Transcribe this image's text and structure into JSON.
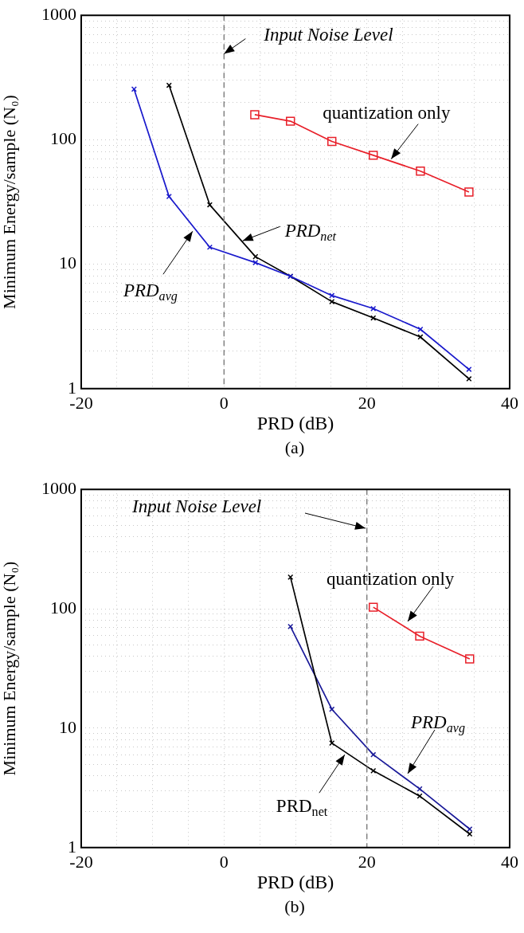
{
  "chart_data": [
    {
      "type": "line",
      "xlabel": "PRD (dB)",
      "ylabel": "Minimum Energy/sample (N₀)",
      "log": true,
      "grid": true,
      "legend": false,
      "xlim": [
        -20,
        40
      ],
      "xticks": [
        -20,
        {
          "value": -15,
          "label": null
        },
        {
          "value": -10,
          "label": null
        },
        {
          "value": -5,
          "label": null
        },
        0,
        {
          "value": 5,
          "label": null
        },
        {
          "value": 10,
          "label": null
        },
        {
          "value": 15,
          "label": null
        },
        20,
        {
          "value": 25,
          "label": null
        },
        {
          "value": 30,
          "label": null
        },
        {
          "value": 35,
          "label": null
        },
        40
      ],
      "ylim": [
        1,
        1000
      ],
      "yticks": [
        1,
        {
          "value": 2,
          "label": null
        },
        {
          "value": 3,
          "label": null
        },
        {
          "value": 4,
          "label": null
        },
        {
          "value": 5,
          "label": null
        },
        {
          "value": 6,
          "label": null
        },
        {
          "value": 7,
          "label": null
        },
        {
          "value": 8,
          "label": null
        },
        {
          "value": 9,
          "label": null
        },
        10,
        {
          "value": 20,
          "label": null
        },
        {
          "value": 30,
          "label": null
        },
        {
          "value": 40,
          "label": null
        },
        {
          "value": 50,
          "label": null
        },
        {
          "value": 60,
          "label": null
        },
        {
          "value": 70,
          "label": null
        },
        {
          "value": 80,
          "label": null
        },
        {
          "value": 90,
          "label": null
        },
        100,
        {
          "value": 200,
          "label": null
        },
        {
          "value": 300,
          "label": null
        },
        {
          "value": 400,
          "label": null
        },
        {
          "value": 500,
          "label": null
        },
        {
          "value": 600,
          "label": null
        },
        {
          "value": 700,
          "label": null
        },
        {
          "value": 800,
          "label": null
        },
        {
          "value": 900,
          "label": null
        },
        1000
      ],
      "ref_lines": [
        {
          "axis": "x",
          "value": 0,
          "color": "#808080",
          "line_style": "dashed"
        }
      ],
      "series": [
        {
          "color": "#1a1acc",
          "marker": "cross",
          "x": [
            -12.6,
            -7.7,
            -2.0,
            4.4,
            9.3,
            15.1,
            20.9,
            27.5,
            34.3
          ],
          "values": [
            255,
            35,
            13.7,
            10.3,
            8.0,
            5.6,
            4.4,
            3.0,
            1.43
          ]
        },
        {
          "color": "#000000",
          "marker": "cross",
          "x": [
            -7.7,
            -2.0,
            4.4,
            9.3,
            15.1,
            20.9,
            27.5,
            34.3
          ],
          "values": [
            274,
            30,
            11.5,
            8.0,
            5.0,
            3.7,
            2.6,
            1.2
          ]
        },
        {
          "color": "#e8202a",
          "marker": "square",
          "x": [
            4.3,
            9.3,
            15.1,
            20.9,
            27.5,
            34.3
          ],
          "values": [
            159,
            141,
            97,
            75,
            56,
            38
          ]
        }
      ],
      "annotations": [
        {
          "text": "Input Noise Level",
          "x": 0,
          "y": 490
        },
        {
          "text": "quantization only",
          "x": 23.4,
          "y": 70
        },
        {
          "text": "PRD$_{net}$",
          "x": 2.6,
          "y": 15.4
        },
        {
          "text": "PRD$_{avg}$",
          "x": -4.4,
          "y": 18.4
        },
        "(a)"
      ]
    },
    {
      "type": "line",
      "xlabel": "PRD (dB)",
      "ylabel": "Minimum Energy/sample (N₀)",
      "log": true,
      "grid": true,
      "legend": false,
      "xlim": [
        -20,
        40
      ],
      "xticks": [
        -20,
        {
          "value": -15,
          "label": null
        },
        {
          "value": -10,
          "label": null
        },
        {
          "value": -5,
          "label": null
        },
        0,
        {
          "value": 5,
          "label": null
        },
        {
          "value": 10,
          "label": null
        },
        {
          "value": 15,
          "label": null
        },
        20,
        {
          "value": 25,
          "label": null
        },
        {
          "value": 30,
          "label": null
        },
        {
          "value": 35,
          "label": null
        },
        40
      ],
      "ylim": [
        1,
        1000
      ],
      "yticks": [
        1,
        {
          "value": 2,
          "label": null
        },
        {
          "value": 3,
          "label": null
        },
        {
          "value": 4,
          "label": null
        },
        {
          "value": 5,
          "label": null
        },
        {
          "value": 6,
          "label": null
        },
        {
          "value": 7,
          "label": null
        },
        {
          "value": 8,
          "label": null
        },
        {
          "value": 9,
          "label": null
        },
        10,
        {
          "value": 20,
          "label": null
        },
        {
          "value": 30,
          "label": null
        },
        {
          "value": 40,
          "label": null
        },
        {
          "value": 50,
          "label": null
        },
        {
          "value": 60,
          "label": null
        },
        {
          "value": 70,
          "label": null
        },
        {
          "value": 80,
          "label": null
        },
        {
          "value": 90,
          "label": null
        },
        100,
        {
          "value": 200,
          "label": null
        },
        {
          "value": 300,
          "label": null
        },
        {
          "value": 400,
          "label": null
        },
        {
          "value": 500,
          "label": null
        },
        {
          "value": 600,
          "label": null
        },
        {
          "value": 700,
          "label": null
        },
        {
          "value": 800,
          "label": null
        },
        {
          "value": 900,
          "label": null
        },
        1000
      ],
      "ref_lines": [
        {
          "axis": "x",
          "value": 20,
          "color": "#808080",
          "line_style": "dashed"
        }
      ],
      "series": [
        {
          "color": "#000000",
          "marker": "cross",
          "x": [
            9.3,
            15.1,
            20.9,
            27.4,
            34.4
          ],
          "values": [
            184,
            7.5,
            4.4,
            2.7,
            1.3
          ]
        },
        {
          "color": "#1a1a99",
          "marker": "cross",
          "x": [
            9.3,
            15.1,
            20.9,
            27.4,
            34.4
          ],
          "values": [
            71,
            14.4,
            6.0,
            3.1,
            1.43
          ]
        },
        {
          "color": "#e8202a",
          "marker": "square",
          "x": [
            20.9,
            27.4,
            34.4
          ],
          "values": [
            103,
            59,
            38
          ]
        }
      ],
      "annotations": [
        "Input Noise Level",
        "quantization only",
        "PRD$_{avg}$",
        {
          "text": "PRD$_{net}$",
          "x": 16.9,
          "y": 6.0
        },
        "(b)"
      ]
    }
  ]
}
